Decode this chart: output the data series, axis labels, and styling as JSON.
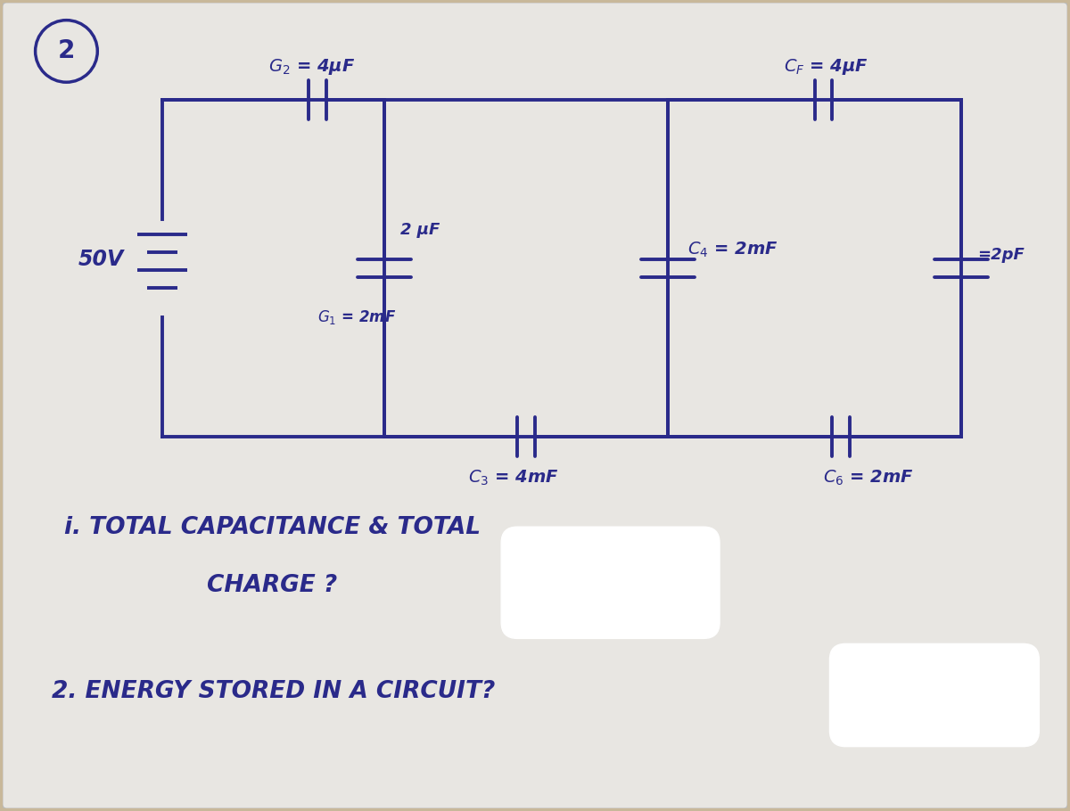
{
  "bg_color": "#c8b89a",
  "paper_color": "#e8e6e2",
  "ink_color": "#2a2a8a",
  "circle_label": "2",
  "battery_label": "50V",
  "q1_line1": "i. TOTAL CAPACITANCE & TOTAL",
  "q1_line2": "CHARGE ?",
  "q2": "2. ENERGY STORED IN A CIRCUIT?"
}
